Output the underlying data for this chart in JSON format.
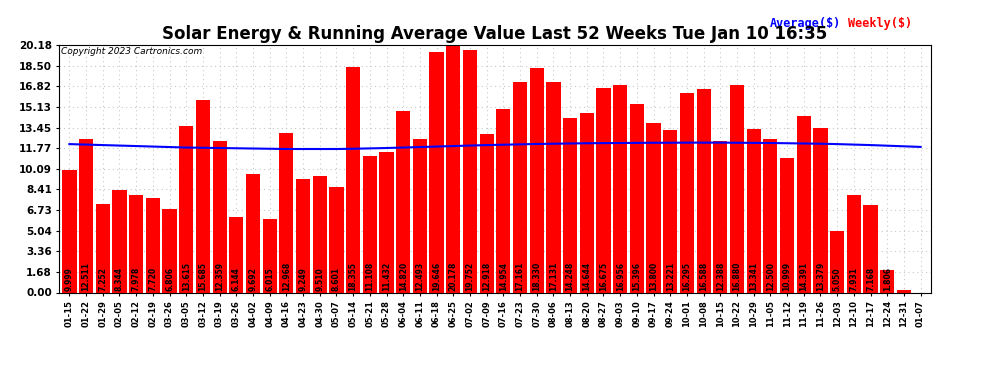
{
  "title": "Solar Energy & Running Average Value Last 52 Weeks Tue Jan 10 16:35",
  "copyright": "Copyright 2023 Cartronics.com",
  "legend_avg": "Average($)",
  "legend_weekly": "Weekly($)",
  "categories": [
    "01-15",
    "01-22",
    "01-29",
    "02-05",
    "02-12",
    "02-19",
    "03-26",
    "03-05",
    "03-12",
    "03-19",
    "03-26",
    "04-02",
    "04-09",
    "04-16",
    "04-23",
    "04-30",
    "05-07",
    "05-14",
    "05-21",
    "05-28",
    "06-04",
    "06-11",
    "06-18",
    "06-25",
    "07-02",
    "07-09",
    "07-16",
    "07-23",
    "07-30",
    "08-06",
    "08-13",
    "08-20",
    "08-27",
    "09-03",
    "09-10",
    "09-17",
    "09-24",
    "10-01",
    "10-08",
    "10-15",
    "10-22",
    "10-29",
    "11-05",
    "11-12",
    "11-19",
    "11-26",
    "12-03",
    "12-10",
    "12-17",
    "12-24",
    "12-31",
    "01-07"
  ],
  "weekly_values": [
    9.999,
    12.511,
    7.252,
    8.344,
    7.978,
    7.72,
    6.806,
    13.615,
    15.685,
    12.359,
    6.144,
    9.692,
    6.015,
    12.968,
    9.249,
    9.51,
    8.601,
    18.355,
    11.108,
    11.432,
    14.82,
    12.493,
    19.646,
    20.178,
    19.752,
    12.918,
    14.954,
    17.161,
    18.33,
    17.131,
    14.248,
    14.644,
    16.675,
    16.956,
    15.396,
    13.8,
    13.221,
    16.295,
    16.588,
    12.388,
    16.88,
    13.341,
    12.5,
    10.999,
    14.391,
    13.379,
    5.05,
    7.931,
    7.168,
    1.806,
    0.243,
    0.0
  ],
  "avg_values": [
    12.1,
    12.06,
    12.02,
    11.98,
    11.94,
    11.9,
    11.86,
    11.82,
    11.8,
    11.78,
    11.76,
    11.74,
    11.72,
    11.7,
    11.7,
    11.7,
    11.7,
    11.72,
    11.75,
    11.78,
    11.82,
    11.86,
    11.9,
    11.94,
    11.98,
    12.02,
    12.05,
    12.08,
    12.11,
    12.13,
    12.15,
    12.17,
    12.18,
    12.19,
    12.2,
    12.21,
    12.21,
    12.22,
    12.22,
    12.22,
    12.21,
    12.2,
    12.19,
    12.17,
    12.15,
    12.13,
    12.1,
    12.06,
    12.02,
    11.97,
    11.92,
    11.87
  ],
  "bar_color": "#ff0000",
  "avg_line_color": "#0000ff",
  "bg_color": "#ffffff",
  "title_fontsize": 12,
  "yticks": [
    0.0,
    1.68,
    3.36,
    5.04,
    6.73,
    8.41,
    10.09,
    11.77,
    13.45,
    15.13,
    16.82,
    18.5,
    20.18
  ],
  "grid_color": "#c8c8c8",
  "bar_label_fontsize": 5.5,
  "bar_label_color": "#000000"
}
